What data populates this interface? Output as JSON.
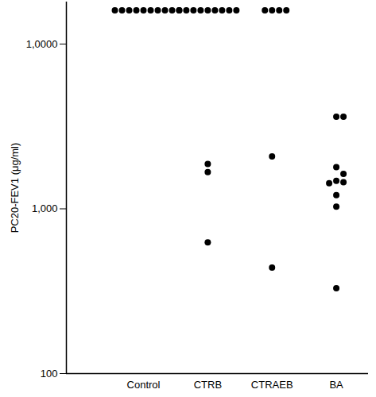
{
  "chart_data": {
    "type": "scatter",
    "categories": [
      "Control",
      "CTRB",
      "CTRAEB",
      "BA"
    ],
    "values": [
      [
        16000,
        16000,
        16000,
        16000,
        16000,
        16000,
        16000,
        16000,
        16000,
        16000
      ],
      [
        16000,
        16000,
        16000,
        16000,
        16000,
        16000,
        16000,
        16000,
        16000,
        1870,
        1670,
        625
      ],
      [
        16000,
        16000,
        16000,
        16000,
        2080,
        440
      ],
      [
        3620,
        3620,
        1790,
        1630,
        1480,
        1450,
        1430,
        1210,
        1030,
        330
      ]
    ],
    "y_label": "PC20-FEV1 (μg/ml)",
    "log": "y",
    "ylim": [
      100,
      18000
    ],
    "yticks": [
      100,
      {
        "value": 1000,
        "label": "1,000"
      },
      {
        "value": 10000,
        "label": "1,0000"
      }
    ],
    "color": "#000000",
    "marker": "circle"
  }
}
